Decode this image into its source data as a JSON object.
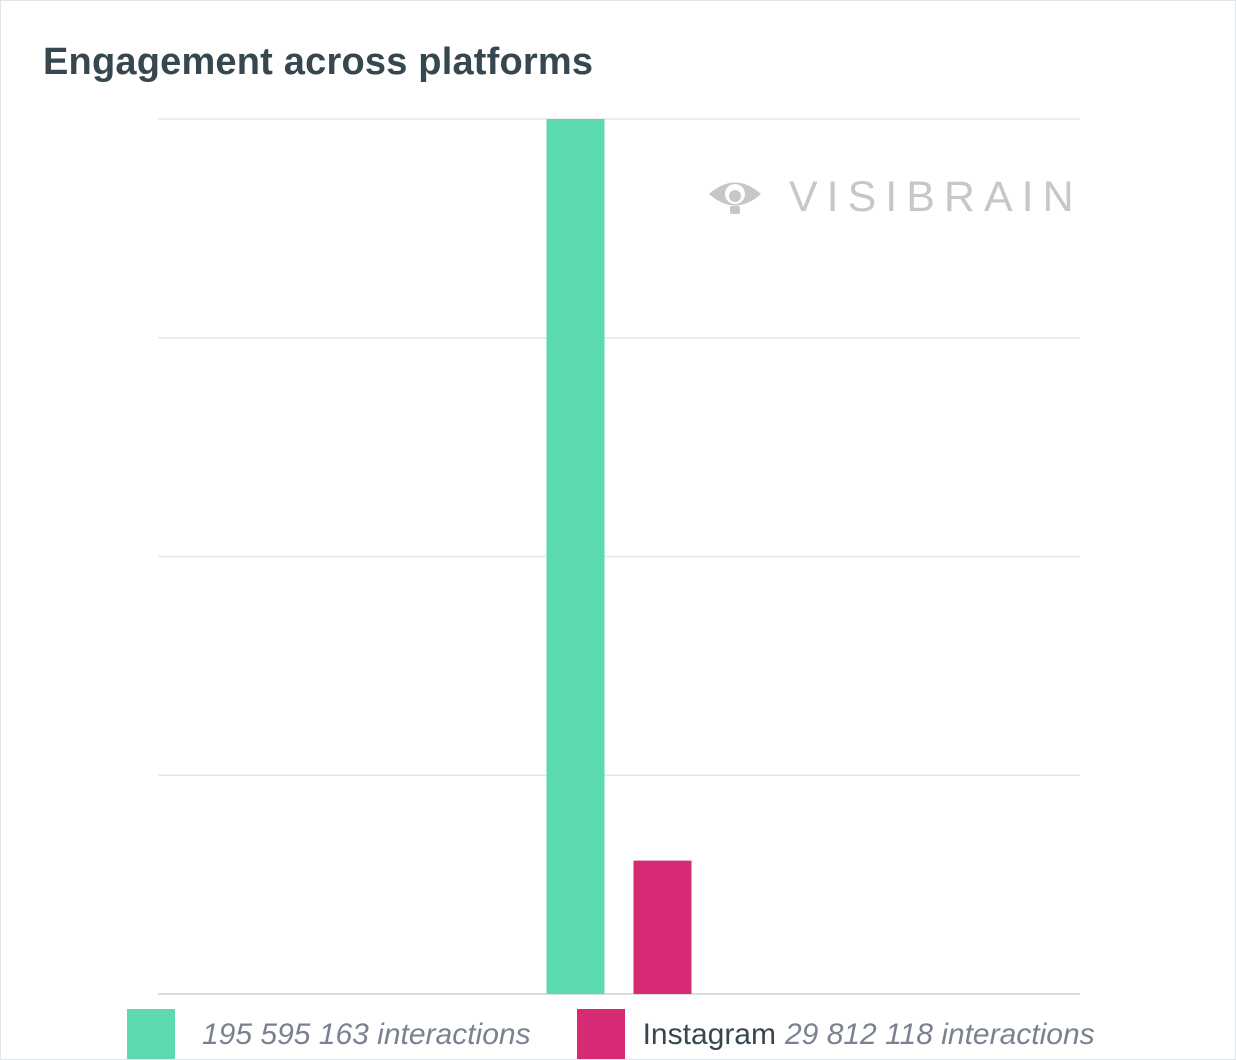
{
  "title": "Engagement across platforms",
  "watermark": {
    "text": "VISIBRAIN",
    "icon": "eye-icon"
  },
  "chart_data": {
    "type": "bar",
    "title": "Engagement across platforms",
    "xlabel": "",
    "ylabel": "",
    "ylim": [
      0,
      195595163
    ],
    "grid": true,
    "legend_position": "bottom",
    "series": [
      {
        "name": "",
        "value": 195595163,
        "color": "#5cd9b1",
        "label": "195 595 163 interactions"
      },
      {
        "name": "Instagram",
        "value": 29812118,
        "color": "#d62a75",
        "label": "29 812 118 interactions"
      }
    ]
  }
}
